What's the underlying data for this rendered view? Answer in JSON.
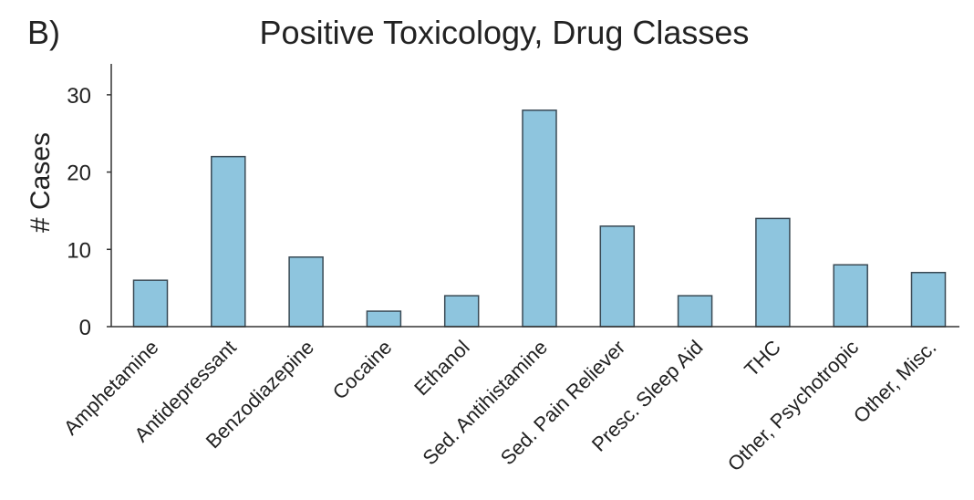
{
  "panel_label": "B)",
  "colors": {
    "bar_fill": "#8ec5de",
    "bar_stroke": "#3a4a55",
    "axis": "#333333",
    "text": "#222222"
  },
  "chart_data": {
    "type": "bar",
    "title": "Positive Toxicology, Drug Classes",
    "xlabel": "",
    "ylabel": "# Cases",
    "ylim": [
      0,
      34
    ],
    "yticks": [
      0,
      10,
      20,
      30
    ],
    "grid": false,
    "legend": "none",
    "categories": [
      "Amphetamine",
      "Antidepressant",
      "Benzodiazepine",
      "Cocaine",
      "Ethanol",
      "Sed. Antihistamine",
      "Sed. Pain Reliever",
      "Presc. Sleep Aid",
      "THC",
      "Other, Psychotropic",
      "Other, Misc."
    ],
    "values": [
      6,
      22,
      9,
      2,
      4,
      28,
      13,
      4,
      14,
      8,
      7
    ]
  }
}
